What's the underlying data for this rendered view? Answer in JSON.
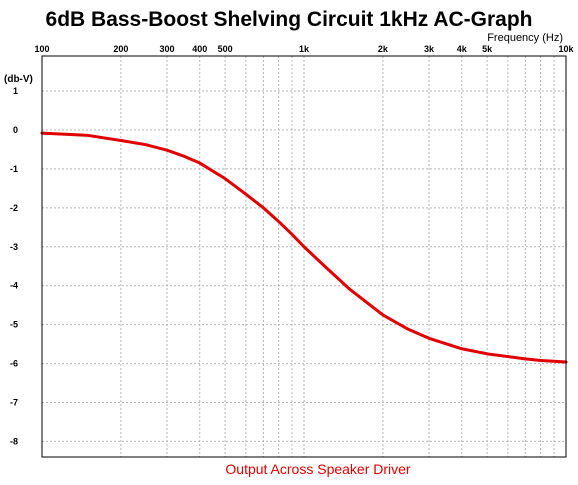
{
  "chart_data": {
    "type": "line",
    "title": "6dB Bass-Boost Shelving Circuit 1kHz AC-Graph",
    "xlabel": "Frequency  (Hz)",
    "ylabel": "(db-V)",
    "caption": "Output Across Speaker Driver",
    "x_scale": "log",
    "xlim": [
      100,
      10000
    ],
    "ylim": [
      -8.4,
      1.9
    ],
    "x_ticks": [
      {
        "value": 100,
        "label": "100"
      },
      {
        "value": 200,
        "label": "200"
      },
      {
        "value": 300,
        "label": "300"
      },
      {
        "value": 400,
        "label": "400"
      },
      {
        "value": 500,
        "label": "500"
      },
      {
        "value": 1000,
        "label": "1k"
      },
      {
        "value": 2000,
        "label": "2k"
      },
      {
        "value": 3000,
        "label": "3k"
      },
      {
        "value": 4000,
        "label": "4k"
      },
      {
        "value": 5000,
        "label": "5k"
      },
      {
        "value": 10000,
        "label": "10k"
      }
    ],
    "x_minor_gridlines": [
      600,
      700,
      800,
      900,
      6000,
      7000,
      8000,
      9000
    ],
    "y_ticks": [
      {
        "value": 1,
        "label": "1"
      },
      {
        "value": 0,
        "label": "0"
      },
      {
        "value": -1,
        "label": "-1"
      },
      {
        "value": -2,
        "label": "-2"
      },
      {
        "value": -3,
        "label": "-3"
      },
      {
        "value": -4,
        "label": "-4"
      },
      {
        "value": -5,
        "label": "-5"
      },
      {
        "value": -6,
        "label": "-6"
      },
      {
        "value": -7,
        "label": "-7"
      },
      {
        "value": -8,
        "label": "-8"
      }
    ],
    "grid": true,
    "series": [
      {
        "color": "#e00000",
        "x": [
          100,
          150,
          200,
          250,
          300,
          350,
          400,
          500,
          600,
          700,
          800,
          900,
          1000,
          1200,
          1500,
          2000,
          2500,
          3000,
          4000,
          5000,
          6000,
          7000,
          8000,
          9000,
          10000
        ],
        "y": [
          -0.08,
          -0.14,
          -0.27,
          -0.38,
          -0.52,
          -0.68,
          -0.85,
          -1.25,
          -1.65,
          -2.0,
          -2.35,
          -2.68,
          -3.0,
          -3.5,
          -4.1,
          -4.75,
          -5.12,
          -5.35,
          -5.62,
          -5.75,
          -5.82,
          -5.88,
          -5.92,
          -5.94,
          -5.96
        ]
      }
    ]
  },
  "colors": {
    "curve": "#e00000",
    "grid": "#b4b4b4",
    "frame": "#000000",
    "caption": "#e00000"
  }
}
